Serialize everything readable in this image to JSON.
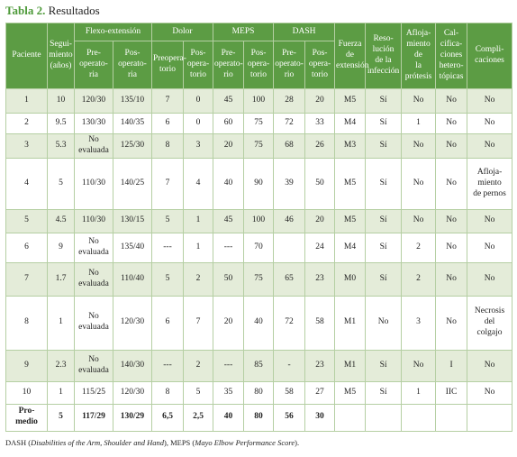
{
  "title": {
    "label": "Tabla 2.",
    "text": "Resultados"
  },
  "header": {
    "columns": [
      {
        "label": "Paciente"
      },
      {
        "label": "Segui-\nmiento\n(años)"
      },
      {
        "label": "Flexo-extensión",
        "sub": [
          "Pre-\noperato-\nria",
          "Pos-\noperato-\nria"
        ]
      },
      {
        "label": "Dolor",
        "sub": [
          "Preopera-\ntorio",
          "Pos-\nopera-\ntorio"
        ]
      },
      {
        "label": "MEPS",
        "sub": [
          "Pre-\noperato-\nrio",
          "Pos-\nopera-\ntorio"
        ]
      },
      {
        "label": "DASH",
        "sub": [
          "Pre-\noperato-\nrio",
          "Pos-\nopera-\ntorio"
        ]
      },
      {
        "label": "Fuerza\nde\nextensión"
      },
      {
        "label": "Reso-\nlución\nde la\ninfección"
      },
      {
        "label": "Afloja-\nmiento de\nla prótesis"
      },
      {
        "label": "Cal-\ncifica-\nciones\nhetero-\ntópicas"
      },
      {
        "label": "Compli-\ncaciones"
      }
    ]
  },
  "table": {
    "rows": [
      [
        "1",
        "10",
        "120/30",
        "135/10",
        "7",
        "0",
        "45",
        "100",
        "28",
        "20",
        "M5",
        "Sí",
        "No",
        "No",
        "No"
      ],
      [
        "2",
        "9.5",
        "130/30",
        "140/35",
        "6",
        "0",
        "60",
        "75",
        "72",
        "33",
        "M4",
        "Sí",
        "1",
        "No",
        "No"
      ],
      [
        "3",
        "5.3",
        "No\nevaluada",
        "125/30",
        "8",
        "3",
        "20",
        "75",
        "68",
        "26",
        "M3",
        "Sí",
        "No",
        "No",
        "No"
      ],
      [
        "4",
        "5",
        "110/30",
        "140/25",
        "7",
        "4",
        "40",
        "90",
        "39",
        "50",
        "M5",
        "Sí",
        "No",
        "No",
        "Afloja-\nmiento\nde pernos"
      ],
      [
        "5",
        "4.5",
        "110/30",
        "130/15",
        "5",
        "1",
        "45",
        "100",
        "46",
        "20",
        "M5",
        "Sí",
        "No",
        "No",
        "No"
      ],
      [
        "6",
        "9",
        "No\nevaluada",
        "135/40",
        "---",
        "1",
        "---",
        "70",
        null,
        "24",
        "M4",
        "Sí",
        "2",
        "No",
        "No"
      ],
      [
        "7",
        "1.7",
        "No\nevaluada",
        "110/40",
        "5",
        "2",
        "50",
        "75",
        "65",
        "23",
        "M0",
        "Sí",
        "2",
        "No",
        "No"
      ],
      [
        "8",
        "1",
        "No\nevaluada",
        "120/30",
        "6",
        "7",
        "20",
        "40",
        "72",
        "58",
        "M1",
        "No",
        "3",
        "No",
        "Necrosis\ndel\ncolgajo"
      ],
      [
        "9",
        "2.3",
        "No\nevaluada",
        "140/30",
        "---",
        "2",
        "---",
        "85",
        "-",
        "23",
        "M1",
        "Sí",
        "No",
        "I",
        "No"
      ],
      [
        "10",
        "1",
        "115/25",
        "120/30",
        "8",
        "5",
        "35",
        "80",
        "58",
        "27",
        "M5",
        "Sí",
        "1",
        "IIC",
        "No"
      ],
      [
        "Pro-\nmedio",
        "5",
        "117/29",
        "130/29",
        "6,5",
        "2,5",
        "40",
        "80",
        "56",
        "30"
      ]
    ]
  },
  "footnote": [
    "DASH (",
    "Disabilities of the Arm, Shoulder and Hand",
    "), MEPS (",
    "Mayo Elbow Performance Score",
    ")."
  ]
}
